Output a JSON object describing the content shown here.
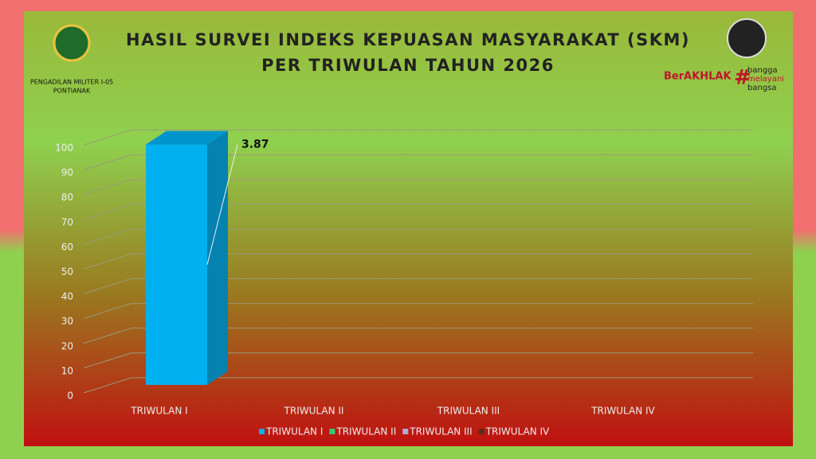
{
  "header": {
    "title_lines": [
      "HASIL SURVEI INDEKS KEPUASAN MASYARAKAT (SKM)",
      "PER TRIWULAN TAHUN 2026"
    ],
    "institution": [
      "PENGADILAN MILITER I-05",
      "PONTIANAK"
    ],
    "brand": {
      "name": "BerAKHLAK",
      "tagline": [
        "bangga",
        "melayani",
        "bangsa"
      ]
    }
  },
  "chart_data": {
    "type": "bar3d",
    "categories": [
      "TRIWULAN I",
      "TRIWULAN II",
      "TRIWULAN III",
      "TRIWULAN IV"
    ],
    "series": [
      {
        "name": "TRIWULAN I",
        "color": "#00b0f0",
        "values": [
          97,
          null,
          null,
          null
        ]
      },
      {
        "name": "TRIWULAN II",
        "color": "#2ecc71",
        "values": [
          null,
          null,
          null,
          null
        ]
      },
      {
        "name": "TRIWULAN III",
        "color": "#b4a7d6",
        "values": [
          null,
          null,
          null,
          null
        ]
      },
      {
        "name": "TRIWULAN IV",
        "color": "#5a2a1a",
        "values": [
          null,
          null,
          null,
          null
        ]
      }
    ],
    "annotation": "3.87",
    "ylim": [
      0,
      100
    ],
    "yticks": [
      0,
      10,
      20,
      30,
      40,
      50,
      60,
      70,
      80,
      90,
      100
    ],
    "grid": true
  }
}
